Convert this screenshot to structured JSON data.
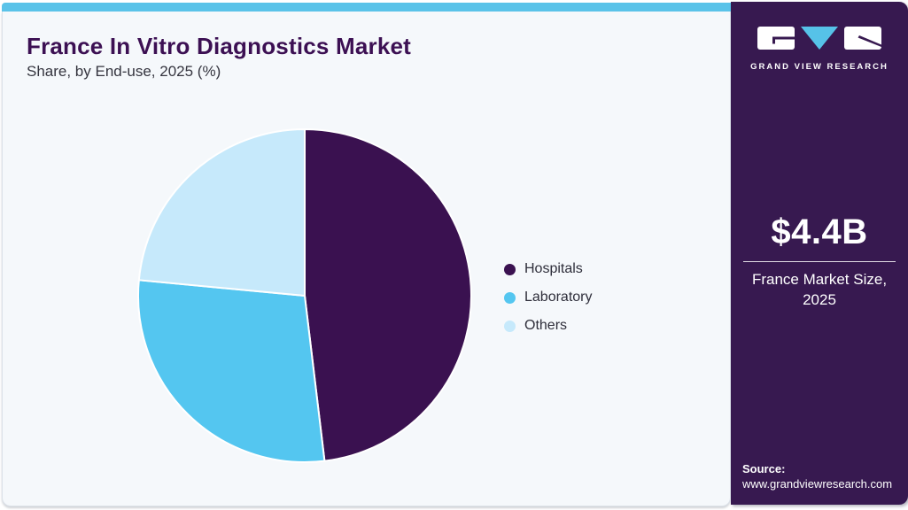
{
  "header": {
    "title": "France In Vitro Diagnostics Market",
    "subtitle": "Share, by End-use, 2025 (%)"
  },
  "chart_data": {
    "type": "pie",
    "title": "France In Vitro Diagnostics Market Share, by End-use, 2025 (%)",
    "unit": "%",
    "categories": [
      "Hospitals",
      "Laboratory",
      "Others"
    ],
    "values": [
      48.1,
      28.4,
      23.5
    ],
    "colors": [
      "#3a1150",
      "#54c6f0",
      "#c6e9fb"
    ],
    "start_angle_deg": 0,
    "direction": "clockwise",
    "legend_position": "right",
    "data_labels_shown": false
  },
  "legend": {
    "items": [
      {
        "label": "Hospitals",
        "color": "#3a1150"
      },
      {
        "label": "Laboratory",
        "color": "#54c6f0"
      },
      {
        "label": "Others",
        "color": "#c6e9fb"
      }
    ]
  },
  "sidebar": {
    "logo_wordmark": "GRAND VIEW RESEARCH",
    "metric_value": "$4.4B",
    "metric_label": "France Market Size, 2025",
    "source_label": "Source:",
    "source_url": "www.grandviewresearch.com"
  },
  "theme": {
    "topbar_color": "#5ac3e9",
    "card_background": "#f5f8fb",
    "title_color": "#3c1053",
    "sidebar_background": "#371950",
    "logo_accent": "#56c2e8",
    "slice_stroke": "#ffffff"
  }
}
